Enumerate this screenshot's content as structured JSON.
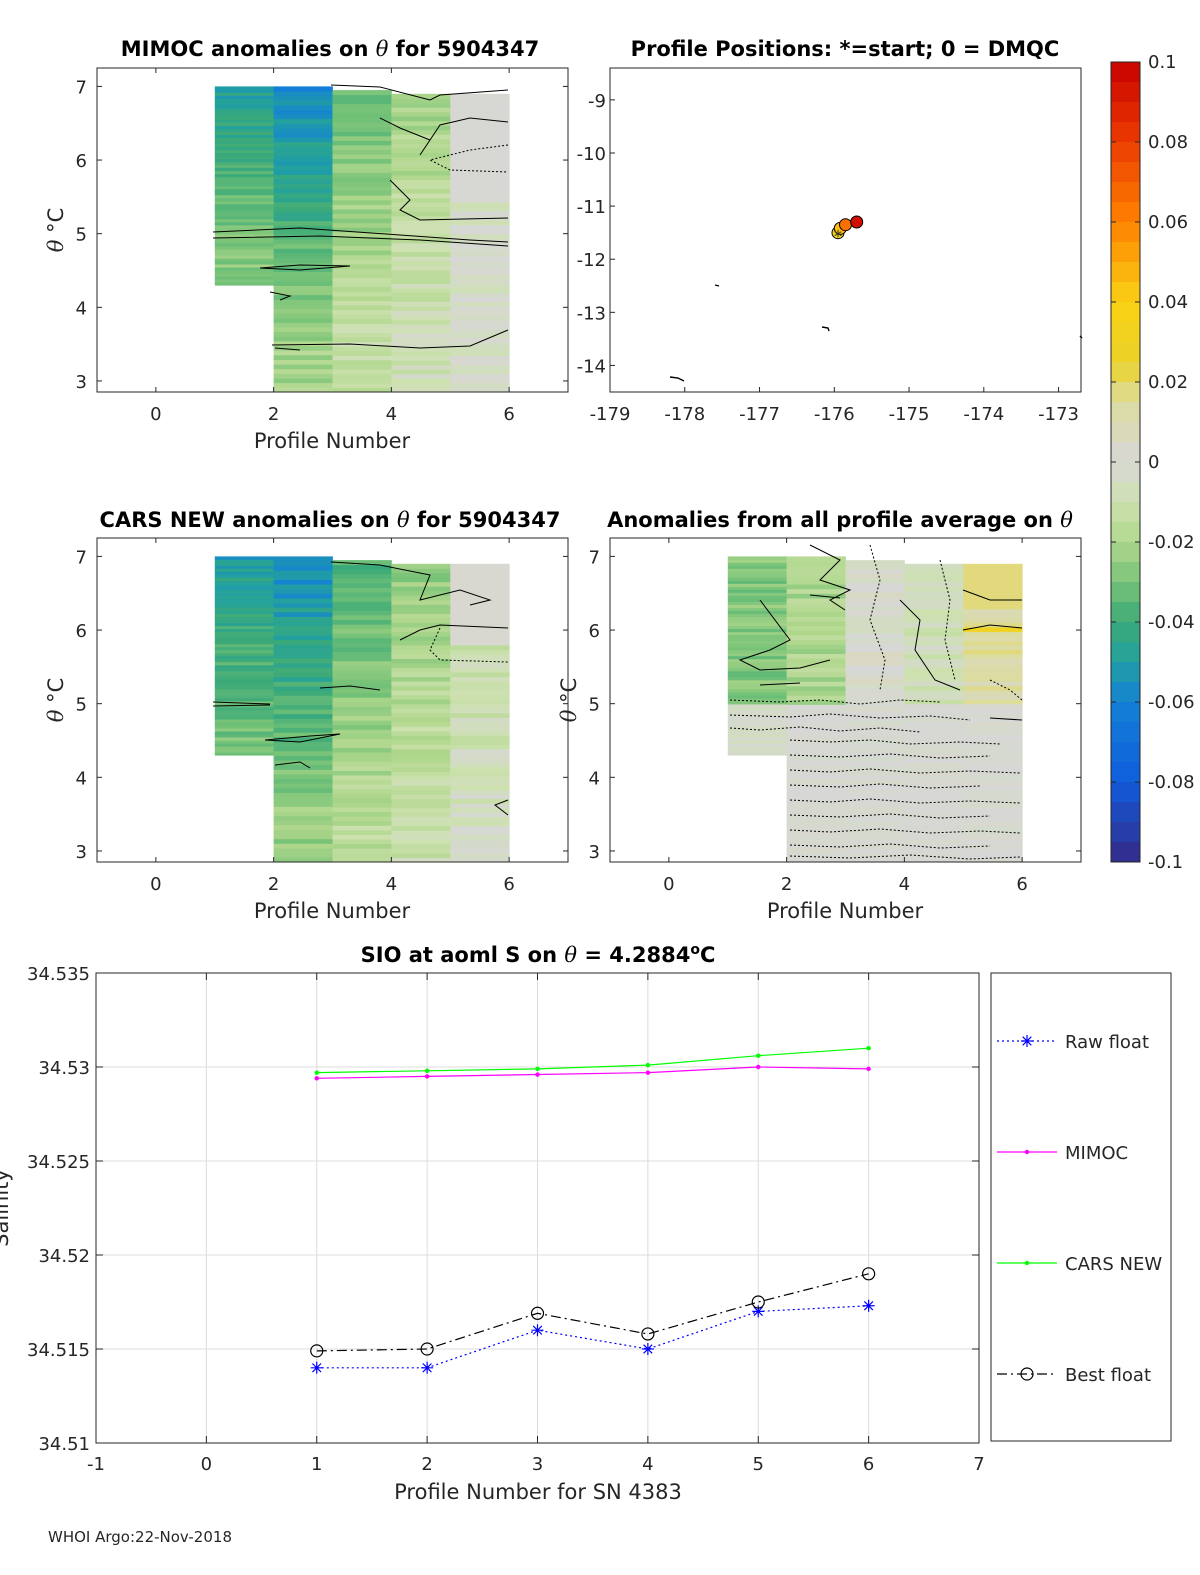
{
  "footer": "WHOI Argo:22-Nov-2018",
  "colorbar": {
    "ticks": [
      "0.1",
      "0.08",
      "0.06",
      "0.04",
      "0.02",
      "0",
      "-0.02",
      "-0.04",
      "-0.06",
      "-0.08",
      "-0.1"
    ]
  },
  "chart_data": [
    {
      "type": "heatmap",
      "title_pre": "MIMOC anomalies on ",
      "title_sym": "θ",
      "title_post": "  for 5904347",
      "xlabel": "Profile Number",
      "ylabel_sym": "θ",
      "ylabel_unit": " °C",
      "x_ticks": [
        "0",
        "2",
        "4",
        "6"
      ],
      "y_ticks": [
        "3",
        "4",
        "5",
        "6",
        "7"
      ],
      "xlim": [
        -1,
        7
      ],
      "ylim": [
        2.85,
        7.25
      ]
    },
    {
      "type": "scatter",
      "title": "Profile Positions: *=start; 0 = DMQC",
      "x_ticks": [
        "-179",
        "-178",
        "-177",
        "-176",
        "-175",
        "-174",
        "-173"
      ],
      "y_ticks": [
        "-9",
        "-10",
        "-11",
        "-12",
        "-13",
        "-14"
      ],
      "xlim": [
        -179,
        -172.7
      ],
      "ylim": [
        -14.5,
        -8.4
      ],
      "positions": [
        {
          "lon": -175.95,
          "lat": -11.5,
          "value": 0.028
        },
        {
          "lon": -175.92,
          "lat": -11.42,
          "value": 0.045
        },
        {
          "lon": -175.85,
          "lat": -11.35,
          "value": 0.065
        },
        {
          "lon": -175.7,
          "lat": -11.3,
          "value": 0.095
        }
      ]
    },
    {
      "type": "heatmap",
      "title_pre": "CARS NEW anomalies on ",
      "title_sym": "θ",
      "title_post": " for 5904347",
      "xlabel": "Profile Number",
      "ylabel_sym": "θ",
      "ylabel_unit": " °C",
      "x_ticks": [
        "0",
        "2",
        "4",
        "6"
      ],
      "y_ticks": [
        "3",
        "4",
        "5",
        "6",
        "7"
      ],
      "xlim": [
        -1,
        7
      ],
      "ylim": [
        2.85,
        7.25
      ]
    },
    {
      "type": "heatmap",
      "title_pre": "Anomalies from all profile average on ",
      "title_sym": "θ",
      "title_post": "",
      "xlabel": "Profile Number",
      "ylabel_sym": "θ",
      "ylabel_unit": " °C",
      "x_ticks": [
        "0",
        "2",
        "4",
        "6"
      ],
      "y_ticks": [
        "3",
        "4",
        "5",
        "6",
        "7"
      ],
      "xlim": [
        -1,
        7
      ],
      "ylim": [
        2.85,
        7.25
      ]
    },
    {
      "type": "line",
      "title_pre": "SIO at aoml S on ",
      "title_sym": "θ",
      "title_post": " = 4.2884",
      "title_sup": "o",
      "title_end": "C",
      "xlabel": "Profile Number for SN 4383",
      "ylabel": "Salinity",
      "x_ticks": [
        "-1",
        "0",
        "1",
        "2",
        "3",
        "4",
        "5",
        "6",
        "7"
      ],
      "y_ticks": [
        "34.51",
        "34.515",
        "34.52",
        "34.525",
        "34.53",
        "34.535"
      ],
      "xlim": [
        -1,
        7
      ],
      "ylim": [
        34.51,
        34.535
      ],
      "x": [
        1,
        2,
        3,
        4,
        5,
        6
      ],
      "series": [
        {
          "name": "Raw float",
          "color": "#0000ff",
          "values": [
            34.514,
            34.514,
            34.516,
            34.515,
            34.517,
            34.5173
          ]
        },
        {
          "name": "MIMOC",
          "color": "#ff00ff",
          "values": [
            34.5294,
            34.5295,
            34.5296,
            34.5297,
            34.53,
            34.5299
          ]
        },
        {
          "name": "CARS NEW",
          "color": "#00ff00",
          "values": [
            34.5297,
            34.5298,
            34.5299,
            34.5301,
            34.5306,
            34.531
          ]
        },
        {
          "name": "Best float",
          "color": "#000000",
          "values": [
            34.5149,
            34.515,
            34.5169,
            34.5158,
            34.5175,
            34.519
          ]
        }
      ]
    }
  ]
}
